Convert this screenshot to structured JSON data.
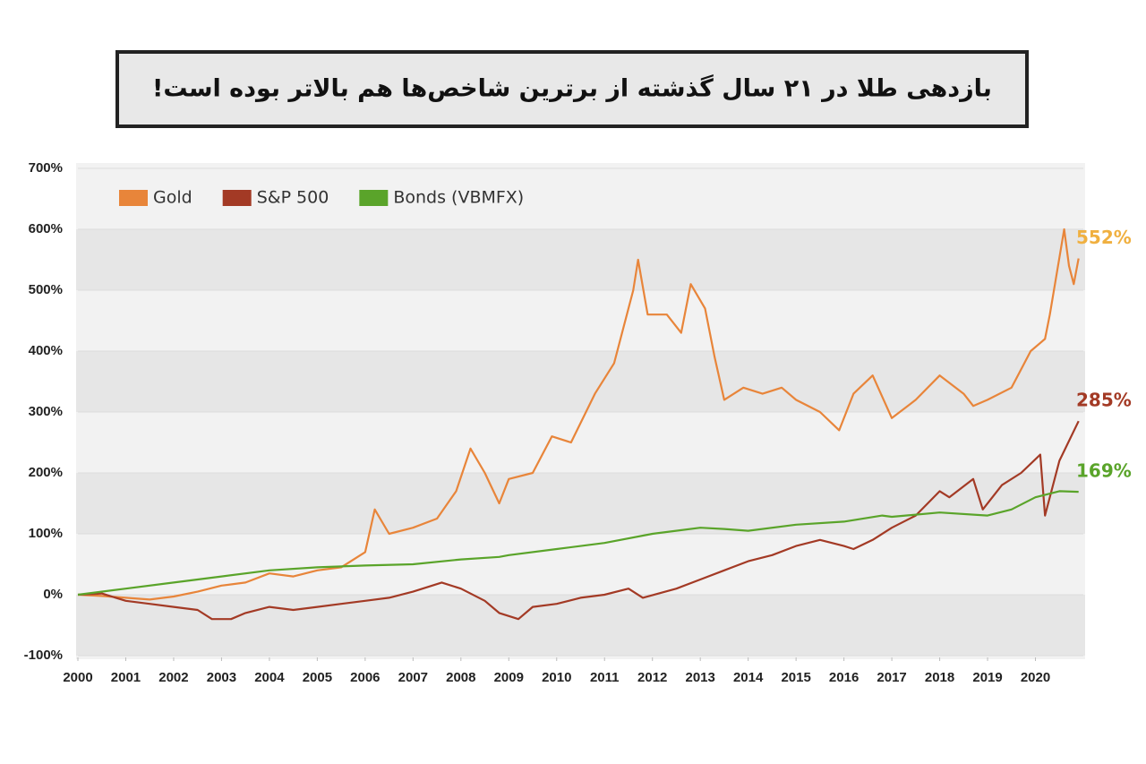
{
  "chart_data": {
    "type": "line",
    "title": "بازدهی طلا در ۲۱ سال گذشته از برترین شاخص‌ها هم بالاتر بوده است!",
    "xlim": [
      2000,
      2021
    ],
    "xticks": [
      2000,
      2001,
      2002,
      2003,
      2004,
      2005,
      2006,
      2007,
      2008,
      2009,
      2010,
      2011,
      2012,
      2013,
      2014,
      2015,
      2016,
      2017,
      2018,
      2019,
      2020
    ],
    "ylim": [
      -100,
      700
    ],
    "yticks": [
      {
        "value": -100,
        "label": "-100%"
      },
      {
        "value": 0,
        "label": "0%"
      },
      {
        "value": 100,
        "label": "100%"
      },
      {
        "value": 200,
        "label": "200%"
      },
      {
        "value": 300,
        "label": "300%"
      },
      {
        "value": 400,
        "label": "400%"
      },
      {
        "value": 500,
        "label": "500%"
      },
      {
        "value": 600,
        "label": "600%"
      },
      {
        "value": 700,
        "label": "700%"
      }
    ],
    "legend": "top-left",
    "series": [
      {
        "name": "Gold",
        "color": "#e8853a",
        "end_label": "552%",
        "end_label_color": "#f0b040",
        "x": [
          2000,
          2000.5,
          2001,
          2001.5,
          2002,
          2002.5,
          2003,
          2003.5,
          2004,
          2004.5,
          2005,
          2005.5,
          2006,
          2006.2,
          2006.5,
          2007,
          2007.5,
          2007.9,
          2008.2,
          2008.5,
          2008.8,
          2009,
          2009.5,
          2009.9,
          2010.3,
          2010.8,
          2011.2,
          2011.6,
          2011.7,
          2011.9,
          2012.3,
          2012.6,
          2012.8,
          2013.1,
          2013.3,
          2013.5,
          2013.9,
          2014.3,
          2014.7,
          2015,
          2015.5,
          2015.9,
          2016.2,
          2016.6,
          2017,
          2017.5,
          2018,
          2018.5,
          2018.7,
          2019,
          2019.5,
          2019.9,
          2020.2,
          2020.3,
          2020.6,
          2020.7,
          2020.8,
          2020.9
        ],
        "values": [
          0,
          -2,
          -5,
          -8,
          -3,
          5,
          15,
          20,
          35,
          30,
          40,
          45,
          70,
          140,
          100,
          110,
          125,
          170,
          240,
          200,
          150,
          190,
          200,
          260,
          250,
          330,
          380,
          500,
          550,
          460,
          460,
          430,
          510,
          470,
          390,
          320,
          340,
          330,
          340,
          320,
          300,
          270,
          330,
          360,
          290,
          320,
          360,
          330,
          310,
          320,
          340,
          400,
          420,
          460,
          600,
          540,
          510,
          552
        ]
      },
      {
        "name": "S&P 500",
        "color": "#a33a25",
        "end_label": "285%",
        "end_label_color": "#a33a25",
        "x": [
          2000,
          2000.5,
          2001,
          2001.5,
          2002,
          2002.5,
          2002.8,
          2003.2,
          2003.5,
          2004,
          2004.5,
          2005,
          2005.5,
          2006,
          2006.5,
          2007,
          2007.6,
          2008,
          2008.5,
          2008.8,
          2009.2,
          2009.5,
          2010,
          2010.5,
          2011,
          2011.5,
          2011.8,
          2012.5,
          2013,
          2013.5,
          2014,
          2014.5,
          2015,
          2015.5,
          2016,
          2016.2,
          2016.6,
          2017,
          2017.5,
          2018,
          2018.2,
          2018.7,
          2018.9,
          2019.3,
          2019.7,
          2020.1,
          2020.2,
          2020.5,
          2020.9
        ],
        "values": [
          0,
          2,
          -10,
          -15,
          -20,
          -25,
          -40,
          -40,
          -30,
          -20,
          -25,
          -20,
          -15,
          -10,
          -5,
          5,
          20,
          10,
          -10,
          -30,
          -40,
          -20,
          -15,
          -5,
          0,
          10,
          -5,
          10,
          25,
          40,
          55,
          65,
          80,
          90,
          80,
          75,
          90,
          110,
          130,
          170,
          160,
          190,
          140,
          180,
          200,
          230,
          130,
          220,
          285
        ]
      },
      {
        "name": "Bonds (VBMFX)",
        "color": "#5aa42a",
        "end_label": "169%",
        "end_label_color": "#5aa42a",
        "x": [
          2000,
          2001,
          2002,
          2003,
          2004,
          2005,
          2006,
          2007,
          2008,
          2008.8,
          2009,
          2010,
          2011,
          2012,
          2013,
          2013.5,
          2014,
          2015,
          2016,
          2016.8,
          2017,
          2018,
          2019,
          2019.5,
          2020,
          2020.5,
          2020.9
        ],
        "values": [
          0,
          10,
          20,
          30,
          40,
          45,
          48,
          50,
          58,
          62,
          65,
          75,
          85,
          100,
          110,
          108,
          105,
          115,
          120,
          130,
          128,
          135,
          130,
          140,
          160,
          170,
          169
        ]
      }
    ]
  }
}
